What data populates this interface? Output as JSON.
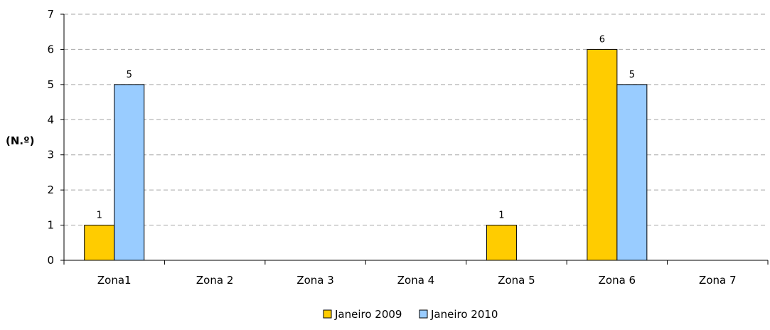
{
  "chart_data": {
    "type": "bar",
    "categories": [
      "Zona1",
      "Zona 2",
      "Zona 3",
      "Zona 4",
      "Zona 5",
      "Zona 6",
      "Zona 7"
    ],
    "series": [
      {
        "name": "Janeiro 2009",
        "values": [
          1,
          null,
          null,
          null,
          1,
          6,
          null
        ],
        "color": "#FFCC00"
      },
      {
        "name": "Janeiro 2010",
        "values": [
          5,
          null,
          null,
          null,
          null,
          5,
          null
        ],
        "color": "#99CCFF"
      }
    ],
    "title": "",
    "xlabel": "",
    "ylabel": "(N.º)",
    "ylim": [
      0,
      7
    ],
    "yticks": [
      0,
      1,
      2,
      3,
      4,
      5,
      6,
      7
    ],
    "grid": "horizontal dashed",
    "legend_position": "bottom",
    "data_labels": true
  }
}
